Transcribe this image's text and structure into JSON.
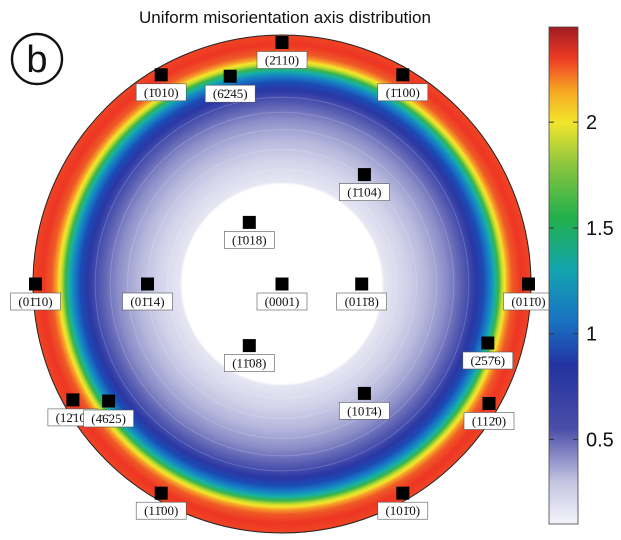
{
  "title": "Uniform misorientation axis distribution",
  "panel_letter": "b",
  "colorbar": {
    "min": 0.1,
    "max": 2.45,
    "ticks": [
      {
        "value": 0.5,
        "label": "0.5"
      },
      {
        "value": 1,
        "label": "1"
      },
      {
        "value": 1.5,
        "label": "1.5"
      },
      {
        "value": 2,
        "label": "2"
      }
    ],
    "stops": [
      {
        "value": 0.1,
        "color": "#f4f4fb"
      },
      {
        "value": 0.3,
        "color": "#c4c4e2"
      },
      {
        "value": 0.55,
        "color": "#4b4ea8"
      },
      {
        "value": 0.85,
        "color": "#2233a0"
      },
      {
        "value": 1.05,
        "color": "#1a6fc2"
      },
      {
        "value": 1.3,
        "color": "#13a5b0"
      },
      {
        "value": 1.55,
        "color": "#22b04b"
      },
      {
        "value": 1.8,
        "color": "#8cc63f"
      },
      {
        "value": 2.0,
        "color": "#f3e52b"
      },
      {
        "value": 2.15,
        "color": "#f6a623"
      },
      {
        "value": 2.3,
        "color": "#ee3b24"
      },
      {
        "value": 2.45,
        "color": "#a01c22"
      }
    ]
  },
  "pole_points": [
    {
      "label": "(2̄110)",
      "angle_deg": 90,
      "radius_frac": 0.97
    },
    {
      "label": "(1̄010)",
      "angle_deg": 120,
      "radius_frac": 0.97
    },
    {
      "label": "(6̄2̄45)",
      "angle_deg": 104,
      "radius_frac": 0.86
    },
    {
      "label": "(1̄100)",
      "angle_deg": 60,
      "radius_frac": 0.97
    },
    {
      "label": "(1̄104)",
      "angle_deg": 53,
      "radius_frac": 0.55
    },
    {
      "label": "(1̄018)",
      "angle_deg": 118,
      "radius_frac": 0.28
    },
    {
      "label": "(0001)",
      "angle_deg": 0,
      "radius_frac": 0.0
    },
    {
      "label": "(011̄8)",
      "angle_deg": 0,
      "radius_frac": 0.32
    },
    {
      "label": "(01̄14)",
      "angle_deg": 180,
      "radius_frac": 0.54
    },
    {
      "label": "(01̄10)",
      "angle_deg": 180,
      "radius_frac": 0.99
    },
    {
      "label": "(011̄0)",
      "angle_deg": 0,
      "radius_frac": 0.99
    },
    {
      "label": "(11̄08)",
      "angle_deg": 242,
      "radius_frac": 0.28
    },
    {
      "label": "(2̄57̄6)",
      "angle_deg": 344,
      "radius_frac": 0.86
    },
    {
      "label": "(101̄4)",
      "angle_deg": 307,
      "radius_frac": 0.55
    },
    {
      "label": "(12̄10)",
      "angle_deg": 209,
      "radius_frac": 0.96
    },
    {
      "label": "(4̄6̄25)",
      "angle_deg": 214,
      "radius_frac": 0.84
    },
    {
      "label": "(112̄0)",
      "angle_deg": 330,
      "radius_frac": 0.96
    },
    {
      "label": "(11̄00)",
      "angle_deg": 240,
      "radius_frac": 0.97
    },
    {
      "label": "(101̄0)",
      "angle_deg": 300,
      "radius_frac": 0.97
    }
  ]
}
